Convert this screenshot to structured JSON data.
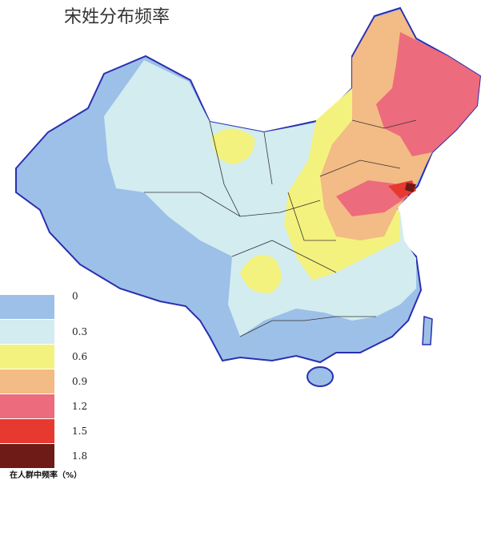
{
  "title": "宋姓分布频率",
  "legend": {
    "items": [
      {
        "value": 0,
        "color": "#9dc0e8"
      },
      {
        "value": 0.3,
        "color": "#d2ecf0"
      },
      {
        "value": 0.6,
        "color": "#f4f27e"
      },
      {
        "value": 0.9,
        "color": "#f3bb85"
      },
      {
        "value": 1.2,
        "color": "#ec6b7c"
      },
      {
        "value": 1.5,
        "color": "#e63a30"
      },
      {
        "value": 1.8,
        "color": "#6e1a16"
      }
    ],
    "caption": "在人群中频率（%）"
  }
}
